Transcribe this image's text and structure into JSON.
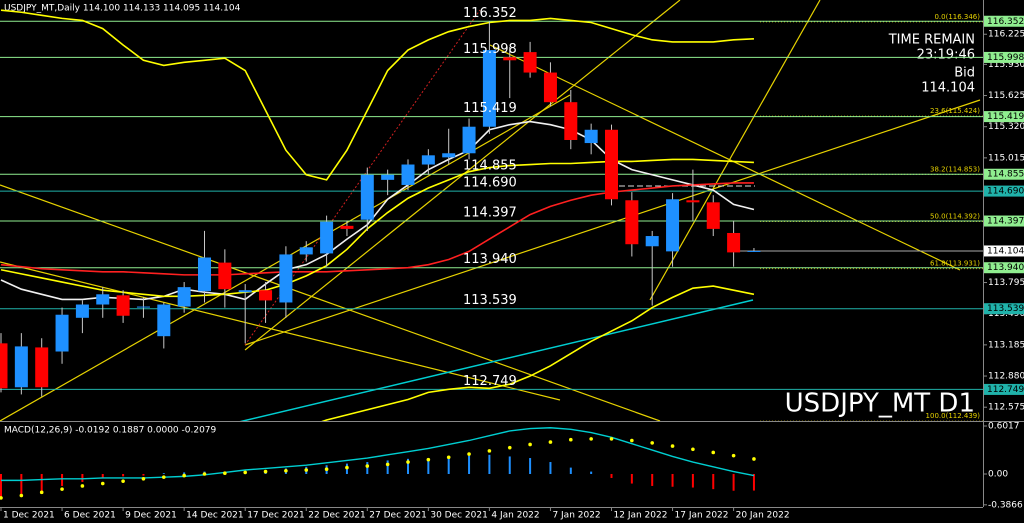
{
  "chart_data": {
    "type": "candlestick",
    "title": "USDJPY_MT,Daily  114.100 114.133 114.095 114.104",
    "symbol_label": "USDJPY_MT D1",
    "time_remain_label": "TIME REMAIN",
    "time_remain": "23:19:46",
    "bid_label": "Bid",
    "bid": 114.104,
    "up_color": "#1e90ff",
    "down_color": "#ff0000",
    "categories": [
      "1 Dec 2021",
      null,
      null,
      "6 Dec 2021",
      null,
      null,
      "9 Dec 2021",
      null,
      null,
      "14 Dec 2021",
      null,
      null,
      "17 Dec 2021",
      null,
      null,
      "22 Dec 2021",
      null,
      null,
      "27 Dec 2021",
      null,
      null,
      "30 Dec 2021",
      null,
      null,
      "4 Jan 2022",
      null,
      null,
      "7 Jan 2022",
      null,
      null,
      "12 Jan 2022",
      null,
      null,
      "17 Jan 2022",
      null,
      null,
      "20 Jan 2022",
      null
    ],
    "open": [
      113.2,
      112.77,
      113.16,
      113.12,
      113.45,
      113.58,
      113.67,
      113.55,
      113.27,
      113.56,
      113.71,
      113.99,
      113.7,
      113.72,
      113.6,
      114.07,
      114.08,
      114.35,
      114.41,
      114.8,
      114.75,
      114.95,
      115.02,
      115.06,
      115.32,
      116.0,
      116.05,
      115.85,
      115.56,
      115.16,
      115.29,
      114.6,
      114.15,
      114.1,
      114.6,
      114.58,
      114.28,
      114.1
    ],
    "high": [
      113.3,
      113.3,
      113.25,
      113.55,
      113.62,
      113.75,
      113.72,
      113.65,
      113.6,
      113.8,
      114.3,
      114.12,
      113.78,
      113.8,
      114.15,
      114.2,
      114.45,
      114.4,
      114.92,
      114.9,
      115.0,
      115.1,
      115.3,
      115.4,
      116.35,
      116.1,
      116.15,
      115.95,
      115.68,
      115.35,
      115.34,
      114.68,
      114.3,
      114.67,
      114.9,
      114.65,
      114.4,
      114.133
    ],
    "low": [
      112.72,
      112.7,
      112.68,
      113.0,
      113.3,
      113.45,
      113.4,
      113.45,
      113.15,
      113.5,
      113.6,
      113.55,
      113.2,
      113.4,
      113.45,
      114.0,
      113.95,
      114.25,
      114.3,
      114.65,
      114.7,
      114.85,
      114.95,
      115.0,
      115.25,
      115.6,
      115.8,
      115.52,
      115.1,
      115.05,
      114.55,
      114.05,
      113.57,
      113.95,
      114.4,
      114.25,
      113.95,
      114.095
    ],
    "close": [
      112.76,
      113.17,
      112.77,
      113.48,
      113.58,
      113.68,
      113.47,
      113.56,
      113.58,
      113.75,
      114.04,
      113.73,
      113.72,
      113.62,
      114.07,
      114.14,
      114.39,
      114.32,
      114.85,
      114.85,
      114.95,
      115.04,
      115.06,
      115.32,
      116.07,
      115.97,
      115.85,
      115.56,
      115.19,
      115.29,
      114.61,
      114.17,
      114.25,
      114.61,
      114.58,
      114.32,
      114.09,
      114.104
    ],
    "ylim": [
      112.44,
      116.56
    ],
    "yticks": [
      116.225,
      {
        "value": 115.93,
        "label": "115.930"
      },
      115.625,
      {
        "value": 115.32,
        "label": "115.320"
      },
      115.015,
      113.795,
      {
        "value": 113.49,
        "label": "113.490"
      },
      113.185,
      {
        "value": 112.88,
        "label": "112.880"
      },
      112.575
    ],
    "levels": [
      {
        "value": 116.352,
        "color": "#90ee90"
      },
      {
        "value": 115.998,
        "color": "#90ee90"
      },
      {
        "value": 115.419,
        "color": "#90ee90"
      },
      {
        "value": 114.855,
        "color": "#90ee90"
      },
      {
        "value": 114.69,
        "label": "114.690",
        "color": "#20b2aa"
      },
      {
        "value": 114.397,
        "color": "#90ee90"
      },
      {
        "value": 113.94,
        "label": "113.940",
        "color": "#90ee90"
      },
      {
        "value": 113.539,
        "color": "#20b2aa"
      },
      {
        "value": 112.749,
        "color": "#20b2aa"
      }
    ],
    "fib_levels": [
      {
        "label": "0.0(116.346)",
        "value": 116.346
      },
      {
        "label": "23.6(115.424)",
        "value": 115.424
      },
      {
        "label": "38.2(114.853)",
        "value": 114.853
      },
      {
        "label": "50.0(114.392)",
        "value": 114.392
      },
      {
        "label": "61.8(113.931)",
        "value": 113.931
      },
      {
        "label": "100.0(112.439)",
        "value": 112.439
      }
    ],
    "overlays": [
      {
        "color": "#f0f0f0",
        "values": [
          113.82,
          113.73,
          113.68,
          113.63,
          113.63,
          113.65,
          113.64,
          113.63,
          113.66,
          113.73,
          113.7,
          113.68,
          113.63,
          113.78,
          113.92,
          113.97,
          114.07,
          114.22,
          114.36,
          114.61,
          114.75,
          114.9,
          115.0,
          115.09,
          115.29,
          115.34,
          115.37,
          115.34,
          115.29,
          115.19,
          115.0,
          114.9,
          114.85,
          114.8,
          114.75,
          114.7,
          114.56,
          114.51
        ]
      },
      {
        "color": "#ff2020",
        "values": [
          113.97,
          113.95,
          113.93,
          113.92,
          113.91,
          113.9,
          113.9,
          113.89,
          113.88,
          113.87,
          113.87,
          113.87,
          113.88,
          113.89,
          113.9,
          113.9,
          113.9,
          113.91,
          113.92,
          113.93,
          113.94,
          113.97,
          114.02,
          114.1,
          114.22,
          114.34,
          114.46,
          114.54,
          114.6,
          114.65,
          114.68,
          114.7,
          114.72,
          114.74,
          114.75,
          114.76,
          114.77,
          114.77
        ]
      },
      {
        "color": "#ffff00",
        "values": [
          116.46,
          116.44,
          116.41,
          116.38,
          116.36,
          116.28,
          116.12,
          115.97,
          115.92,
          115.95,
          115.97,
          115.99,
          115.87,
          115.48,
          115.09,
          114.85,
          114.8,
          115.09,
          115.48,
          115.87,
          116.07,
          116.17,
          116.25,
          116.3,
          116.34,
          116.36,
          116.36,
          116.38,
          116.36,
          116.34,
          116.28,
          116.22,
          116.17,
          116.15,
          116.15,
          116.15,
          116.17,
          116.18
        ]
      },
      {
        "color": "#ffff00",
        "values": [
          113.92,
          113.88,
          113.84,
          113.8,
          113.76,
          113.72,
          113.7,
          113.68,
          113.66,
          113.66,
          113.67,
          113.68,
          113.7,
          113.72,
          113.78,
          113.86,
          113.96,
          114.12,
          114.32,
          114.48,
          114.62,
          114.72,
          114.8,
          114.88,
          114.92,
          114.94,
          114.95,
          114.96,
          114.96,
          114.97,
          114.98,
          114.98,
          114.99,
          115.0,
          115.0,
          114.99,
          114.98,
          114.97
        ]
      },
      {
        "color": "#ffff00",
        "values": [
          112.2,
          112.18,
          112.15,
          112.12,
          112.1,
          112.08,
          112.06,
          112.05,
          112.05,
          112.06,
          112.08,
          112.1,
          112.15,
          112.22,
          112.3,
          112.38,
          112.45,
          112.5,
          112.55,
          112.6,
          112.65,
          112.72,
          112.75,
          112.77,
          112.76,
          112.8,
          112.88,
          112.98,
          113.1,
          113.22,
          113.32,
          113.42,
          113.55,
          113.65,
          113.74,
          113.76,
          113.72,
          113.68
        ]
      }
    ],
    "macd": {
      "title": "MACD(12,26,9) -0.0192 0.1887 0.0000 -0.2079",
      "ylim": [
        -0.414,
        0.652
      ],
      "yticks": [
        0.6017,
        {
          "value": 0,
          "label": "0.00"
        },
        -0.3866
      ],
      "histogram": [
        -0.3,
        -0.25,
        -0.22,
        -0.15,
        -0.1,
        -0.05,
        -0.03,
        -0.02,
        0.01,
        0.02,
        0.03,
        0.02,
        0.03,
        0.05,
        0.07,
        0.09,
        0.11,
        0.13,
        0.15,
        0.17,
        0.19,
        0.2,
        0.22,
        0.23,
        0.24,
        0.22,
        0.2,
        0.15,
        0.08,
        0.03,
        -0.05,
        -0.12,
        -0.15,
        -0.16,
        -0.17,
        -0.19,
        -0.21,
        -0.2079
      ],
      "main": {
        "color": "#00ced1",
        "values": [
          -0.08,
          -0.08,
          -0.07,
          -0.06,
          -0.06,
          -0.05,
          -0.05,
          -0.05,
          -0.04,
          -0.03,
          -0.01,
          0.02,
          0.05,
          0.07,
          0.09,
          0.11,
          0.14,
          0.17,
          0.2,
          0.24,
          0.28,
          0.32,
          0.37,
          0.42,
          0.48,
          0.54,
          0.57,
          0.58,
          0.56,
          0.52,
          0.46,
          0.38,
          0.3,
          0.22,
          0.15,
          0.09,
          0.03,
          -0.0192
        ]
      },
      "signal": {
        "color": "#ffff00",
        "values": [
          -0.3,
          -0.27,
          -0.23,
          -0.19,
          -0.15,
          -0.12,
          -0.09,
          -0.06,
          -0.04,
          -0.02,
          0.0,
          0.01,
          0.02,
          0.03,
          0.04,
          0.05,
          0.06,
          0.08,
          0.1,
          0.12,
          0.15,
          0.18,
          0.21,
          0.25,
          0.29,
          0.33,
          0.37,
          0.4,
          0.43,
          0.44,
          0.44,
          0.42,
          0.39,
          0.35,
          0.31,
          0.27,
          0.23,
          0.1887
        ]
      }
    }
  }
}
